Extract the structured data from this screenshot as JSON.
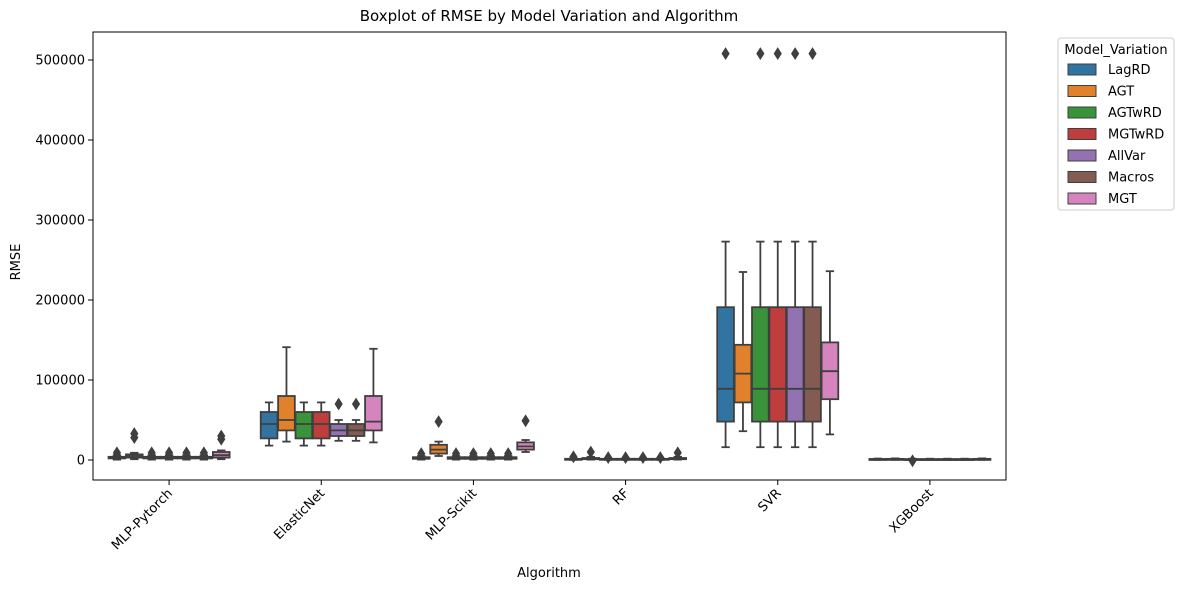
{
  "chart_data": {
    "type": "boxplot",
    "title": "Boxplot of RMSE by Model Variation and Algorithm",
    "xlabel": "Algorithm",
    "ylabel": "RMSE",
    "categories": [
      "MLP-Pytorch",
      "ElasticNet",
      "MLP-Scikit",
      "RF",
      "SVR",
      "XGBoost"
    ],
    "ylim": [
      -25000,
      535000
    ],
    "yticks": [
      0,
      100000,
      200000,
      300000,
      400000,
      500000
    ],
    "ytick_labels": [
      "0",
      "100000",
      "200000",
      "300000",
      "400000",
      "500000"
    ],
    "legend": {
      "title": "Model_Variation",
      "placement": "outside-top-right"
    },
    "series": [
      {
        "name": "LagRD",
        "color": "#3274a1",
        "boxes": [
          {
            "whislo": 500,
            "q1": 2000,
            "med": 3000,
            "q3": 4000,
            "whishi": 6000,
            "fliers": [
              9000
            ]
          },
          {
            "whislo": 18000,
            "q1": 27000,
            "med": 45000,
            "q3": 60000,
            "whishi": 72000,
            "fliers": []
          },
          {
            "whislo": 500,
            "q1": 1500,
            "med": 2500,
            "q3": 3500,
            "whishi": 5000,
            "fliers": [
              8000
            ]
          },
          {
            "whislo": 200,
            "q1": 600,
            "med": 1000,
            "q3": 1500,
            "whishi": 2000,
            "fliers": [
              4000
            ]
          },
          {
            "whislo": 16000,
            "q1": 48000,
            "med": 89000,
            "q3": 191000,
            "whishi": 273000,
            "fliers": [
              508000
            ]
          },
          {
            "whislo": 300,
            "q1": 600,
            "med": 900,
            "q3": 1300,
            "whishi": 1800,
            "fliers": []
          }
        ]
      },
      {
        "name": "AGT",
        "color": "#e1812c",
        "boxes": [
          {
            "whislo": 1000,
            "q1": 3000,
            "med": 5000,
            "q3": 7000,
            "whishi": 9000,
            "fliers": [
              28000,
              33000
            ]
          },
          {
            "whislo": 23000,
            "q1": 37000,
            "med": 50000,
            "q3": 80000,
            "whishi": 141000,
            "fliers": []
          },
          {
            "whislo": 5000,
            "q1": 8000,
            "med": 13000,
            "q3": 19000,
            "whishi": 23000,
            "fliers": [
              48000
            ]
          },
          {
            "whislo": 500,
            "q1": 1000,
            "med": 1500,
            "q3": 2500,
            "whishi": 4000,
            "fliers": [
              10000
            ]
          },
          {
            "whislo": 36000,
            "q1": 72000,
            "med": 108000,
            "q3": 144000,
            "whishi": 235000,
            "fliers": []
          },
          {
            "whislo": 300,
            "q1": 700,
            "med": 1000,
            "q3": 1400,
            "whishi": 2000,
            "fliers": []
          }
        ]
      },
      {
        "name": "AGTwRD",
        "color": "#3a923a",
        "boxes": [
          {
            "whislo": 500,
            "q1": 2000,
            "med": 3000,
            "q3": 4000,
            "whishi": 6000,
            "fliers": [
              9000
            ]
          },
          {
            "whislo": 18000,
            "q1": 27000,
            "med": 45000,
            "q3": 60000,
            "whishi": 72000,
            "fliers": []
          },
          {
            "whislo": 500,
            "q1": 1500,
            "med": 2500,
            "q3": 3500,
            "whishi": 5000,
            "fliers": [
              8000
            ]
          },
          {
            "whislo": 200,
            "q1": 600,
            "med": 1000,
            "q3": 1500,
            "whishi": 2000,
            "fliers": [
              3000
            ]
          },
          {
            "whislo": 16000,
            "q1": 48000,
            "med": 89000,
            "q3": 191000,
            "whishi": 273000,
            "fliers": [
              508000
            ]
          },
          {
            "whislo": 300,
            "q1": 500,
            "med": 800,
            "q3": 1200,
            "whishi": 1600,
            "fliers": [
              -1000
            ]
          }
        ]
      },
      {
        "name": "MGTwRD",
        "color": "#c03d3e",
        "boxes": [
          {
            "whislo": 500,
            "q1": 2000,
            "med": 3000,
            "q3": 4000,
            "whishi": 6000,
            "fliers": [
              9000
            ]
          },
          {
            "whislo": 18000,
            "q1": 27000,
            "med": 45000,
            "q3": 60000,
            "whishi": 72000,
            "fliers": []
          },
          {
            "whislo": 500,
            "q1": 1500,
            "med": 2500,
            "q3": 3500,
            "whishi": 5000,
            "fliers": [
              8000
            ]
          },
          {
            "whislo": 200,
            "q1": 600,
            "med": 1000,
            "q3": 1500,
            "whishi": 2000,
            "fliers": [
              3000
            ]
          },
          {
            "whislo": 16000,
            "q1": 48000,
            "med": 89000,
            "q3": 191000,
            "whishi": 273000,
            "fliers": [
              508000
            ]
          },
          {
            "whislo": 300,
            "q1": 500,
            "med": 800,
            "q3": 1200,
            "whishi": 1600,
            "fliers": []
          }
        ]
      },
      {
        "name": "AllVar",
        "color": "#9372b2",
        "boxes": [
          {
            "whislo": 500,
            "q1": 2000,
            "med": 3000,
            "q3": 4000,
            "whishi": 6000,
            "fliers": [
              9000
            ]
          },
          {
            "whislo": 24000,
            "q1": 30000,
            "med": 37000,
            "q3": 45000,
            "whishi": 50000,
            "fliers": [
              70000
            ]
          },
          {
            "whislo": 500,
            "q1": 1500,
            "med": 2500,
            "q3": 3500,
            "whishi": 5000,
            "fliers": [
              8000
            ]
          },
          {
            "whislo": 200,
            "q1": 600,
            "med": 1000,
            "q3": 1500,
            "whishi": 2000,
            "fliers": [
              3000
            ]
          },
          {
            "whislo": 16000,
            "q1": 48000,
            "med": 89000,
            "q3": 191000,
            "whishi": 273000,
            "fliers": [
              508000
            ]
          },
          {
            "whislo": 300,
            "q1": 500,
            "med": 800,
            "q3": 1200,
            "whishi": 1600,
            "fliers": []
          }
        ]
      },
      {
        "name": "Macros",
        "color": "#845b53",
        "boxes": [
          {
            "whislo": 500,
            "q1": 2000,
            "med": 3000,
            "q3": 4000,
            "whishi": 6000,
            "fliers": [
              9000
            ]
          },
          {
            "whislo": 24000,
            "q1": 30000,
            "med": 37000,
            "q3": 45000,
            "whishi": 50000,
            "fliers": [
              70000
            ]
          },
          {
            "whislo": 500,
            "q1": 1500,
            "med": 2500,
            "q3": 3500,
            "whishi": 5000,
            "fliers": [
              8000
            ]
          },
          {
            "whislo": 200,
            "q1": 600,
            "med": 1000,
            "q3": 1500,
            "whishi": 2000,
            "fliers": [
              3000
            ]
          },
          {
            "whislo": 16000,
            "q1": 48000,
            "med": 89000,
            "q3": 191000,
            "whishi": 273000,
            "fliers": [
              508000
            ]
          },
          {
            "whislo": 300,
            "q1": 500,
            "med": 800,
            "q3": 1200,
            "whishi": 1600,
            "fliers": []
          }
        ]
      },
      {
        "name": "MGT",
        "color": "#d684bd",
        "boxes": [
          {
            "whislo": 1000,
            "q1": 3000,
            "med": 6000,
            "q3": 10000,
            "whishi": 12000,
            "fliers": [
              26000,
              30000
            ]
          },
          {
            "whislo": 22000,
            "q1": 37000,
            "med": 48000,
            "q3": 80000,
            "whishi": 139000,
            "fliers": []
          },
          {
            "whislo": 10000,
            "q1": 13000,
            "med": 17000,
            "q3": 22000,
            "whishi": 25000,
            "fliers": [
              49000
            ]
          },
          {
            "whislo": 500,
            "q1": 1000,
            "med": 1500,
            "q3": 2500,
            "whishi": 4000,
            "fliers": [
              9000
            ]
          },
          {
            "whislo": 32000,
            "q1": 76000,
            "med": 111000,
            "q3": 147000,
            "whishi": 236000,
            "fliers": []
          },
          {
            "whislo": 300,
            "q1": 700,
            "med": 1000,
            "q3": 1400,
            "whishi": 2000,
            "fliers": []
          }
        ]
      }
    ]
  }
}
